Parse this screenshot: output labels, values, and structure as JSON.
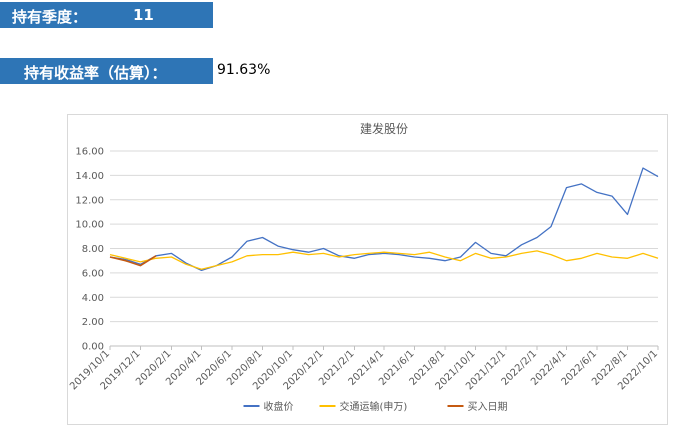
{
  "header": {
    "quarters_label": "持有季度：",
    "quarters_value": "11",
    "return_label": "持有收益率（估算）：",
    "return_value": "91.63%"
  },
  "chart_data": {
    "type": "line",
    "title": "建发股份",
    "ylim": [
      0,
      16
    ],
    "yticks": [
      "0.00",
      "2.00",
      "4.00",
      "6.00",
      "8.00",
      "10.00",
      "12.00",
      "14.00",
      "16.00"
    ],
    "x_tick_labels": [
      "2019/10/1",
      "2019/12/1",
      "2020/2/1",
      "2020/4/1",
      "2020/6/1",
      "2020/8/1",
      "2020/10/1",
      "2020/12/1",
      "2021/2/1",
      "2021/4/1",
      "2021/6/1",
      "2021/8/1",
      "2021/10/1",
      "2021/12/1",
      "2022/2/1",
      "2022/4/1",
      "2022/6/1",
      "2022/8/1",
      "2022/10/1"
    ],
    "x": [
      "2019/10/1",
      "2019/11/1",
      "2019/12/1",
      "2020/1/1",
      "2020/2/1",
      "2020/3/1",
      "2020/4/1",
      "2020/5/1",
      "2020/6/1",
      "2020/7/1",
      "2020/8/1",
      "2020/9/1",
      "2020/10/1",
      "2020/11/1",
      "2020/12/1",
      "2021/1/1",
      "2021/2/1",
      "2021/3/1",
      "2021/4/1",
      "2021/5/1",
      "2021/6/1",
      "2021/7/1",
      "2021/8/1",
      "2021/9/1",
      "2021/10/1",
      "2021/11/1",
      "2021/12/1",
      "2022/1/1",
      "2022/2/1",
      "2022/3/1",
      "2022/4/1",
      "2022/5/1",
      "2022/6/1",
      "2022/7/1",
      "2022/8/1",
      "2022/9/1",
      "2022/10/1"
    ],
    "series": [
      {
        "name": "收盘价",
        "color": "#4472c4",
        "values": [
          7.3,
          7.1,
          6.7,
          7.4,
          7.6,
          6.8,
          6.2,
          6.6,
          7.3,
          8.6,
          8.9,
          8.2,
          7.9,
          7.7,
          8.0,
          7.4,
          7.2,
          7.5,
          7.6,
          7.5,
          7.3,
          7.2,
          7.0,
          7.3,
          8.5,
          7.6,
          7.4,
          8.3,
          8.9,
          9.8,
          13.0,
          13.3,
          12.6,
          12.3,
          10.8,
          14.6,
          13.9
        ]
      },
      {
        "name": "交通运输(申万)",
        "color": "#ffc000",
        "values": [
          7.5,
          7.2,
          6.9,
          7.2,
          7.3,
          6.7,
          6.3,
          6.6,
          6.9,
          7.4,
          7.5,
          7.5,
          7.7,
          7.5,
          7.6,
          7.3,
          7.5,
          7.6,
          7.7,
          7.6,
          7.5,
          7.7,
          7.3,
          7.0,
          7.6,
          7.2,
          7.3,
          7.6,
          7.8,
          7.5,
          7.0,
          7.2,
          7.6,
          7.3,
          7.2,
          7.6,
          7.2
        ]
      },
      {
        "name": "买入日期",
        "color": "#c55a11",
        "values": [
          7.3,
          7.0,
          6.6,
          7.4,
          null,
          null,
          null,
          null,
          null,
          null,
          null,
          null,
          null,
          null,
          null,
          null,
          null,
          null,
          null,
          null,
          null,
          null,
          null,
          null,
          null,
          null,
          null,
          null,
          null,
          null,
          null,
          null,
          null,
          null,
          null,
          null,
          null
        ]
      }
    ],
    "grid": true,
    "legend": "bottom"
  }
}
